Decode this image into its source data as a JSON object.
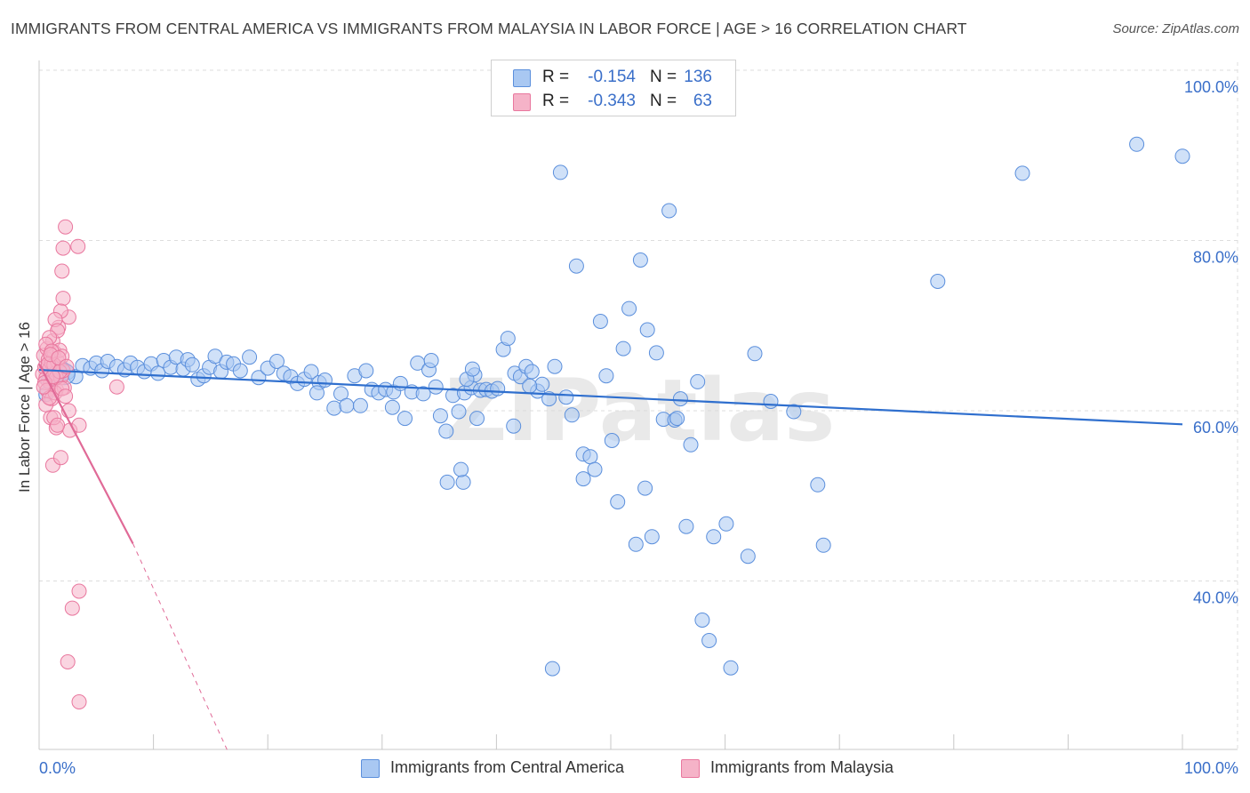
{
  "title": "IMMIGRANTS FROM CENTRAL AMERICA VS IMMIGRANTS FROM MALAYSIA IN LABOR FORCE | AGE > 16 CORRELATION CHART",
  "source": "Source: ZipAtlas.com",
  "watermark": "ZIPatlas",
  "stats": [
    {
      "r_label": "R =",
      "r_value": "-0.154",
      "n_label": "N =",
      "n_value": "136"
    },
    {
      "r_label": "R =",
      "r_value": "-0.343",
      "n_label": "N =",
      "n_value": "63"
    }
  ],
  "legend": [
    {
      "label": "Immigrants from Central America"
    },
    {
      "label": "Immigrants from Malaysia"
    }
  ],
  "chart_data": {
    "type": "scatter",
    "title": "IMMIGRANTS FROM CENTRAL AMERICA VS IMMIGRANTS FROM MALAYSIA IN LABOR FORCE | AGE > 16 CORRELATION CHART",
    "xlabel": "",
    "ylabel": "In Labor Force | Age > 16",
    "xlim": [
      0,
      100
    ],
    "ylim": [
      20,
      104
    ],
    "x_tick_labels": [
      {
        "value": 0,
        "label": "0.0%"
      },
      {
        "value": 100,
        "label": "100.0%"
      }
    ],
    "y_tick_labels": [
      {
        "value": 100,
        "label": "100.0%"
      },
      {
        "value": 80,
        "label": "80.0%"
      },
      {
        "value": 60,
        "label": "60.0%"
      },
      {
        "value": 40,
        "label": "40.0%"
      }
    ],
    "colors": {
      "blue_fill": "#a9c8f2",
      "blue_stroke": "#5b8fdc",
      "blue_line": "#2f6fce",
      "pink_fill": "#f5b3c8",
      "pink_stroke": "#e9779e",
      "pink_line": "#e06a97",
      "grid": "#dddddd",
      "tick_label": "#3a6fc9"
    },
    "series": [
      {
        "name": "Immigrants from Central America",
        "r": -0.154,
        "n": 136,
        "trend": {
          "x0": 0,
          "y0": 64.8,
          "x1": 100,
          "y1": 58.4
        },
        "points": [
          [
            0.6,
            61.9
          ],
          [
            0.8,
            63.5
          ],
          [
            1.5,
            64.2
          ],
          [
            2.0,
            65.0
          ],
          [
            2.5,
            64.5
          ],
          [
            3.2,
            64.0
          ],
          [
            3.8,
            65.3
          ],
          [
            4.5,
            65.0
          ],
          [
            5.0,
            65.6
          ],
          [
            5.5,
            64.7
          ],
          [
            6.0,
            65.8
          ],
          [
            6.8,
            65.2
          ],
          [
            7.5,
            64.8
          ],
          [
            8.0,
            65.6
          ],
          [
            8.6,
            65.1
          ],
          [
            9.2,
            64.6
          ],
          [
            9.8,
            65.5
          ],
          [
            10.4,
            64.4
          ],
          [
            10.9,
            65.9
          ],
          [
            11.5,
            65.1
          ],
          [
            12.0,
            66.3
          ],
          [
            12.6,
            64.9
          ],
          [
            13.0,
            66.0
          ],
          [
            13.4,
            65.4
          ],
          [
            13.9,
            63.7
          ],
          [
            14.4,
            64.1
          ],
          [
            14.9,
            65.1
          ],
          [
            15.4,
            66.4
          ],
          [
            15.9,
            64.6
          ],
          [
            16.4,
            65.7
          ],
          [
            17.0,
            65.5
          ],
          [
            17.6,
            64.7
          ],
          [
            18.4,
            66.3
          ],
          [
            19.2,
            63.9
          ],
          [
            20.0,
            65.0
          ],
          [
            20.8,
            65.8
          ],
          [
            21.4,
            64.4
          ],
          [
            22.0,
            64.0
          ],
          [
            22.6,
            63.2
          ],
          [
            23.2,
            63.7
          ],
          [
            23.8,
            64.6
          ],
          [
            24.5,
            63.3
          ],
          [
            25.0,
            63.6
          ],
          [
            25.8,
            60.3
          ],
          [
            26.4,
            62.0
          ],
          [
            26.9,
            60.6
          ],
          [
            27.6,
            64.1
          ],
          [
            28.1,
            60.6
          ],
          [
            28.6,
            64.7
          ],
          [
            29.1,
            62.5
          ],
          [
            29.7,
            62.1
          ],
          [
            30.3,
            62.5
          ],
          [
            31.0,
            62.2
          ],
          [
            31.6,
            63.2
          ],
          [
            32.0,
            59.1
          ],
          [
            32.6,
            62.2
          ],
          [
            33.1,
            65.6
          ],
          [
            33.6,
            62.0
          ],
          [
            34.1,
            64.8
          ],
          [
            34.7,
            62.8
          ],
          [
            35.1,
            59.4
          ],
          [
            35.6,
            57.6
          ],
          [
            36.2,
            61.8
          ],
          [
            36.7,
            59.9
          ],
          [
            37.2,
            62.1
          ],
          [
            37.8,
            62.7
          ],
          [
            38.1,
            64.2
          ],
          [
            38.6,
            62.4
          ],
          [
            39.1,
            62.5
          ],
          [
            39.6,
            62.3
          ],
          [
            40.1,
            62.6
          ],
          [
            40.6,
            67.2
          ],
          [
            41.0,
            68.5
          ],
          [
            41.6,
            64.4
          ],
          [
            42.1,
            64.0
          ],
          [
            42.6,
            65.2
          ],
          [
            43.1,
            64.6
          ],
          [
            43.6,
            62.3
          ],
          [
            44.0,
            63.1
          ],
          [
            44.6,
            61.4
          ],
          [
            45.1,
            65.2
          ],
          [
            45.6,
            88.0
          ],
          [
            46.1,
            61.6
          ],
          [
            46.6,
            59.5
          ],
          [
            47.0,
            77.0
          ],
          [
            47.6,
            54.9
          ],
          [
            48.2,
            54.6
          ],
          [
            48.6,
            53.1
          ],
          [
            49.1,
            70.5
          ],
          [
            49.6,
            64.1
          ],
          [
            50.1,
            56.5
          ],
          [
            50.6,
            49.3
          ],
          [
            51.1,
            67.3
          ],
          [
            51.6,
            72.0
          ],
          [
            52.2,
            44.3
          ],
          [
            52.6,
            77.7
          ],
          [
            53.2,
            69.5
          ],
          [
            53.6,
            45.2
          ],
          [
            54.0,
            66.8
          ],
          [
            54.6,
            59.0
          ],
          [
            55.1,
            83.5
          ],
          [
            55.6,
            58.9
          ],
          [
            56.1,
            61.4
          ],
          [
            56.6,
            46.4
          ],
          [
            57.0,
            56.0
          ],
          [
            57.6,
            63.4
          ],
          [
            58.0,
            35.4
          ],
          [
            58.6,
            33.0
          ],
          [
            59.0,
            45.2
          ],
          [
            60.1,
            46.7
          ],
          [
            60.5,
            29.8
          ],
          [
            62.0,
            42.9
          ],
          [
            62.6,
            66.7
          ],
          [
            64.0,
            61.1
          ],
          [
            66.0,
            59.9
          ],
          [
            68.1,
            51.3
          ],
          [
            68.6,
            44.2
          ],
          [
            78.6,
            75.2
          ],
          [
            53.0,
            50.9
          ],
          [
            44.9,
            29.7
          ],
          [
            37.1,
            51.6
          ],
          [
            35.7,
            51.6
          ],
          [
            36.9,
            53.1
          ],
          [
            42.9,
            62.9
          ],
          [
            41.5,
            58.2
          ],
          [
            24.3,
            62.1
          ],
          [
            30.9,
            60.4
          ],
          [
            47.6,
            52.0
          ],
          [
            86.0,
            87.9
          ],
          [
            96.0,
            91.3
          ],
          [
            100.0,
            89.9
          ],
          [
            55.8,
            59.1
          ],
          [
            37.4,
            63.7
          ],
          [
            34.3,
            65.9
          ],
          [
            37.9,
            64.9
          ],
          [
            38.3,
            59.1
          ]
        ]
      },
      {
        "name": "Immigrants from Malaysia",
        "r": -0.343,
        "n": 63,
        "trend": {
          "x0": 0,
          "y0": 65.5,
          "x1": 8.2,
          "y1": 44.4,
          "dash_x1": 16.5,
          "dash_y1": 20.0
        },
        "points": [
          [
            0.3,
            64.3
          ],
          [
            0.4,
            66.5
          ],
          [
            0.5,
            65.1
          ],
          [
            0.6,
            63.8
          ],
          [
            0.7,
            67.3
          ],
          [
            0.8,
            66.0
          ],
          [
            0.9,
            64.9
          ],
          [
            1.0,
            63.2
          ],
          [
            1.1,
            65.6
          ],
          [
            1.2,
            68.2
          ],
          [
            1.3,
            66.9
          ],
          [
            1.4,
            64.4
          ],
          [
            1.5,
            62.5
          ],
          [
            1.6,
            65.8
          ],
          [
            1.7,
            69.8
          ],
          [
            1.8,
            67.1
          ],
          [
            1.9,
            63.9
          ],
          [
            2.0,
            66.4
          ],
          [
            2.1,
            64.7
          ],
          [
            2.2,
            62.7
          ],
          [
            1.0,
            59.2
          ],
          [
            1.2,
            53.6
          ],
          [
            1.5,
            58.0
          ],
          [
            1.9,
            54.5
          ],
          [
            2.6,
            60.0
          ],
          [
            2.7,
            57.7
          ],
          [
            2.3,
            81.6
          ],
          [
            2.1,
            79.1
          ],
          [
            3.4,
            79.3
          ],
          [
            2.0,
            76.4
          ],
          [
            2.1,
            73.2
          ],
          [
            2.6,
            71.0
          ],
          [
            1.9,
            71.7
          ],
          [
            1.4,
            70.7
          ],
          [
            1.6,
            69.4
          ],
          [
            0.9,
            68.6
          ],
          [
            0.6,
            67.8
          ],
          [
            1.1,
            67.0
          ],
          [
            1.3,
            65.4
          ],
          [
            1.5,
            63.9
          ],
          [
            1.8,
            64.6
          ],
          [
            0.5,
            63.3
          ],
          [
            0.7,
            62.4
          ],
          [
            1.1,
            61.4
          ],
          [
            3.5,
            58.3
          ],
          [
            3.5,
            38.8
          ],
          [
            2.9,
            36.8
          ],
          [
            2.5,
            30.5
          ],
          [
            3.5,
            25.8
          ],
          [
            6.8,
            62.8
          ],
          [
            0.8,
            65.5
          ],
          [
            1.0,
            66.6
          ],
          [
            1.2,
            64.0
          ],
          [
            1.4,
            62.1
          ],
          [
            0.6,
            60.7
          ],
          [
            1.7,
            66.2
          ],
          [
            2.0,
            62.6
          ],
          [
            2.3,
            61.7
          ],
          [
            0.9,
            61.5
          ],
          [
            1.3,
            59.2
          ],
          [
            1.6,
            58.3
          ],
          [
            0.4,
            62.8
          ],
          [
            2.4,
            65.2
          ]
        ]
      }
    ]
  }
}
